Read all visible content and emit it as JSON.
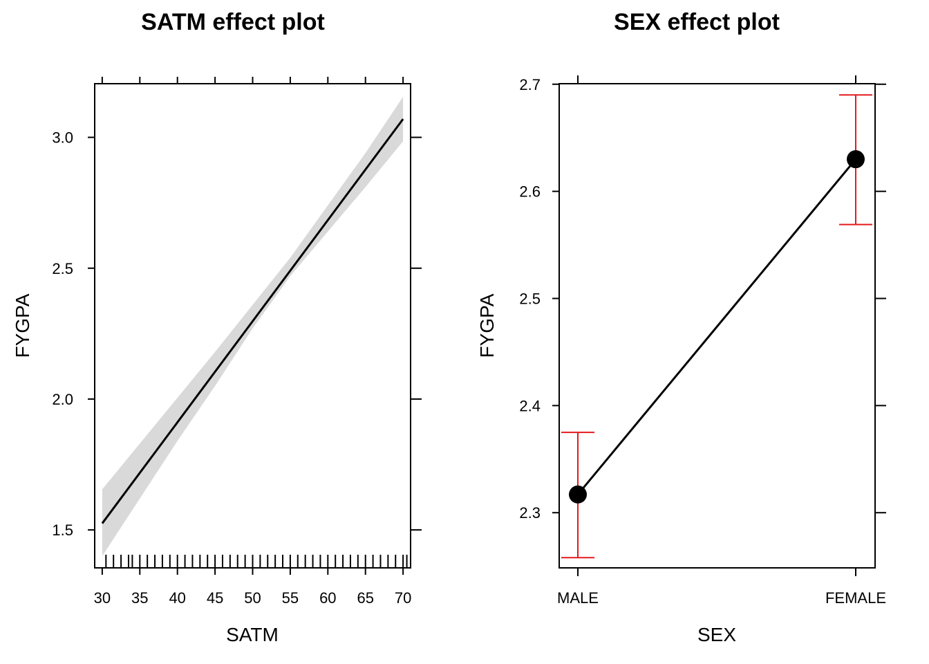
{
  "chart_data": [
    {
      "type": "line",
      "title": "SATM effect plot",
      "xlabel": "SATM",
      "ylabel": "FYGPA",
      "xlim": [
        29,
        71
      ],
      "ylim": [
        1.355,
        3.205
      ],
      "x_ticks": [
        30,
        35,
        40,
        45,
        50,
        55,
        60,
        65,
        70
      ],
      "y_ticks": [
        1.5,
        2.0,
        2.5,
        3.0
      ],
      "x_tick_labels": [
        "30",
        "35",
        "40",
        "45",
        "50",
        "55",
        "60",
        "65",
        "70"
      ],
      "y_tick_labels": [
        "1.5",
        "2.0",
        "2.5",
        "3.0"
      ],
      "series": [
        {
          "x": [
            30,
            70
          ],
          "y": [
            1.525,
            3.07
          ]
        }
      ],
      "confidence_band": {
        "x": [
          30,
          35,
          40,
          45,
          50,
          55,
          60,
          65,
          70
        ],
        "lower": [
          1.4,
          1.62,
          1.84,
          2.05,
          2.27,
          2.47,
          2.64,
          2.81,
          2.985
        ],
        "upper": [
          1.655,
          1.83,
          2.005,
          2.18,
          2.36,
          2.54,
          2.74,
          2.94,
          3.155
        ]
      },
      "rug_x": [
        30.5,
        31.5,
        32.5,
        33.5,
        34,
        35,
        36,
        37,
        38,
        39,
        40,
        41,
        42,
        43,
        44,
        45,
        46,
        47,
        48,
        49,
        50,
        51,
        52,
        53,
        54,
        55,
        56,
        57,
        58,
        59,
        60,
        61,
        62,
        63,
        64,
        65,
        66,
        67,
        68,
        69,
        70,
        70.5
      ],
      "grid": false,
      "band_color": "#d9d9d9",
      "line_color": "#000000"
    },
    {
      "type": "line",
      "title": "SEX effect plot",
      "xlabel": "SEX",
      "ylabel": "FYGPA",
      "categories": [
        "MALE",
        "FEMALE"
      ],
      "ylim": [
        2.2485,
        2.7005
      ],
      "y_ticks": [
        2.3,
        2.4,
        2.5,
        2.6,
        2.7
      ],
      "y_tick_labels": [
        "2.3",
        "2.4",
        "2.5",
        "2.6",
        "2.7"
      ],
      "series": [
        {
          "values": [
            2.317,
            2.63
          ]
        }
      ],
      "error_bars": {
        "lower": [
          2.258,
          2.569
        ],
        "upper": [
          2.375,
          2.69
        ]
      },
      "grid": false,
      "point_color": "#000000",
      "error_bar_color": "#e41a1c"
    }
  ]
}
